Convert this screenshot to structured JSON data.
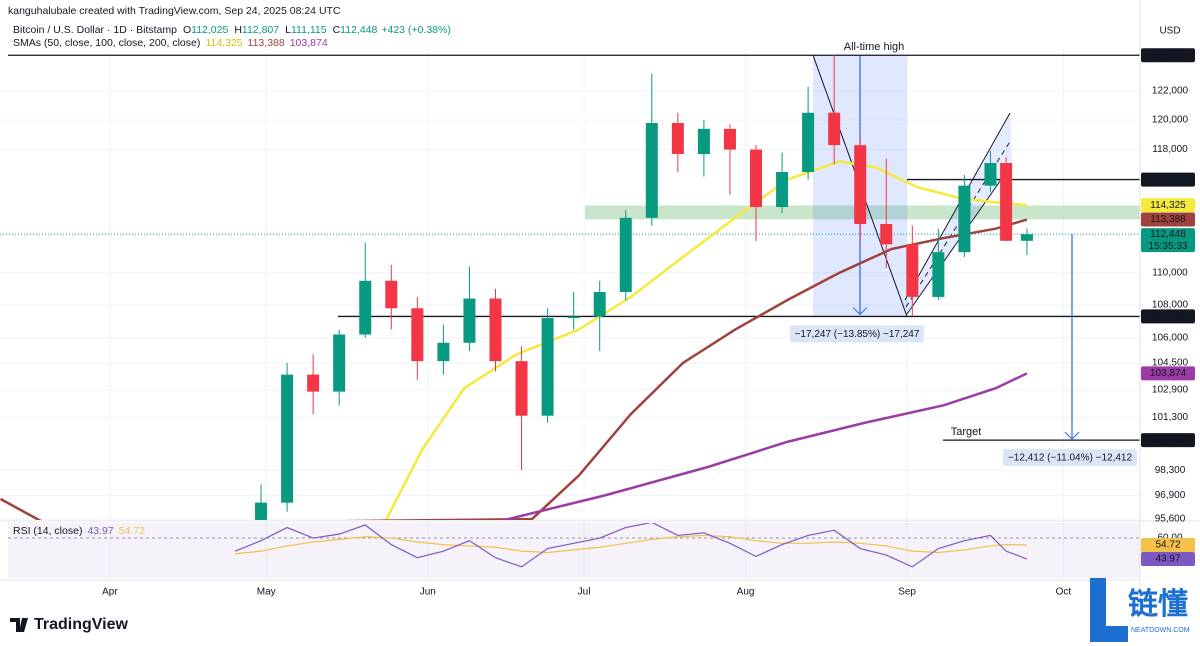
{
  "header": {
    "credit": "kanguhalubale created with TradingView.com, Sep 24, 2025 08:24 UTC",
    "currency": "USD",
    "brand": "TradingView",
    "watermark": "链懂",
    "watermark_sub": "NEATDOWN.COM"
  },
  "chart_data": {
    "type": "candlestick",
    "symbol": "Bitcoin / U.S. Dollar · 1D · Bitstamp",
    "ohlc_legend": [
      {
        "key": "O",
        "value": "112,025"
      },
      {
        "key": "H",
        "value": "112,807"
      },
      {
        "key": "L",
        "value": "111,115"
      },
      {
        "key": "C",
        "value": "112,448"
      }
    ],
    "change": "+423 (+0.38%)",
    "log_scale": true,
    "grid": true,
    "xlim": [
      -21.1,
      197.7
    ],
    "xticks": [
      {
        "value": 0,
        "label": "Apr"
      },
      {
        "value": 30,
        "label": "May"
      },
      {
        "value": 61,
        "label": "Jun"
      },
      {
        "value": 91,
        "label": "Jul"
      },
      {
        "value": 122,
        "label": "Aug"
      },
      {
        "value": 153,
        "label": "Sep"
      },
      {
        "value": 183,
        "label": "Oct"
      }
    ],
    "ylim": [
      95550,
      125030
    ],
    "yticks": [
      {
        "value": 122000,
        "label": "122,000"
      },
      {
        "value": 120000,
        "label": "120,000"
      },
      {
        "value": 118000,
        "label": "118,000"
      },
      {
        "value": 110000,
        "label": "110,000"
      },
      {
        "value": 108000,
        "label": "108,000"
      },
      {
        "value": 106000,
        "label": "106,000"
      },
      {
        "value": 104500,
        "label": "104,500"
      },
      {
        "value": 102900,
        "label": "102,900"
      },
      {
        "value": 101300,
        "label": "101,300"
      },
      {
        "value": 98300,
        "label": "98,300"
      },
      {
        "value": 96900,
        "label": "96,900"
      },
      {
        "value": 95600,
        "label": "95,600"
      }
    ],
    "up_color": "#089981",
    "down_color": "#f23645",
    "x": [
      24,
      29,
      34,
      39,
      44,
      49,
      54,
      59,
      64,
      69,
      74,
      79,
      84,
      89,
      94,
      99,
      104,
      109,
      114,
      119,
      124,
      129,
      134,
      139,
      144,
      149,
      154,
      159,
      164,
      169,
      172,
      176
    ],
    "open": [
      93500,
      94800,
      96500,
      103800,
      102800,
      106200,
      109500,
      107800,
      104600,
      105700,
      108400,
      104600,
      101400,
      107200,
      107300,
      108800,
      113500,
      119800,
      117700,
      119400,
      118000,
      114200,
      116500,
      120500,
      118300,
      113100,
      111800,
      108500,
      111300,
      115600,
      117100,
      112025
    ],
    "high": [
      95500,
      97500,
      104500,
      105000,
      106500,
      111900,
      110500,
      108500,
      106800,
      110400,
      109000,
      105500,
      107800,
      108800,
      109500,
      114000,
      123200,
      120500,
      120000,
      119700,
      118300,
      117800,
      122300,
      124517,
      118800,
      117400,
      113000,
      112800,
      116300,
      117900,
      117500,
      112807
    ],
    "low": [
      92800,
      94000,
      96000,
      101500,
      102000,
      106000,
      106500,
      103500,
      103800,
      105200,
      104000,
      98300,
      101000,
      106500,
      105200,
      108300,
      113000,
      116500,
      116200,
      115000,
      112000,
      113800,
      116000,
      117000,
      112000,
      110300,
      107300,
      108300,
      111000,
      115200,
      112000,
      111115
    ],
    "close": [
      94800,
      96500,
      103800,
      102800,
      106200,
      109500,
      107800,
      104600,
      105700,
      108400,
      104600,
      101400,
      107200,
      107300,
      108800,
      113500,
      119800,
      117700,
      119400,
      118000,
      114200,
      116500,
      120500,
      118300,
      113100,
      111800,
      108500,
      111300,
      115600,
      117100,
      112025,
      112448
    ],
    "sma": {
      "title": "SMAs (50, close, 100, close, 200, close)",
      "lines": [
        {
          "color": "#f5e93c",
          "text_color": "#131722",
          "last_label": "114,325",
          "x": [
            52,
            60,
            68,
            78,
            90,
            100,
            110,
            120,
            130,
            140,
            147,
            155,
            163,
            170,
            176
          ],
          "values": [
            95000,
            99500,
            103000,
            105000,
            106500,
            108500,
            111000,
            113500,
            116000,
            117200,
            116800,
            115500,
            114800,
            114500,
            114325
          ]
        },
        {
          "color": "#a0423c",
          "text_color": "#ffffff",
          "last_label": "113,388",
          "x": [
            -21,
            -12,
            81,
            90,
            100,
            110,
            120,
            130,
            140,
            150,
            160,
            170,
            176
          ],
          "values": [
            96700,
            95300,
            95600,
            98000,
            101500,
            104500,
            106500,
            108300,
            110000,
            111500,
            112200,
            112800,
            113388
          ]
        },
        {
          "color": "#9c3ba5",
          "text_color": "#ffffff",
          "last_label": "103,874",
          "x": [
            60,
            75,
            95,
            115,
            130,
            145,
            160,
            170,
            176
          ],
          "values": [
            94500,
            95500,
            96900,
            98500,
            99900,
            101000,
            102000,
            103000,
            103874
          ]
        }
      ]
    },
    "levels": [
      {
        "value": 124517,
        "label": "124,517"
      },
      {
        "value": 116000,
        "label": "116,000"
      },
      {
        "value": 107300,
        "label": "107,300"
      },
      {
        "value": 100000,
        "label": "100,000"
      }
    ],
    "last_price": {
      "value": 112448,
      "label": "112,448",
      "countdown": "15:35:33",
      "color": "#089981"
    },
    "zone": {
      "low": 113400,
      "high": 114300,
      "color": "#a5d6a7"
    },
    "annotations": {
      "ath": "All-time high",
      "ath_measure": "−17,247 (−13.85%) −17,247",
      "target": "Target",
      "target_measure": "−12,412 (−11.04%) −12,412"
    },
    "rsi": {
      "title": "RSI (14, close)",
      "value": 43.97,
      "ma_value": 54.72,
      "color": "#7e57c2",
      "ma_color": "#f5c04a",
      "ylim": [
        29.5,
        71.5
      ],
      "yticks": [
        {
          "value": 60,
          "label": "60.00"
        }
      ],
      "values": [
        50,
        58,
        68,
        60,
        63,
        70,
        55,
        45,
        50,
        58,
        45,
        38,
        52,
        56,
        60,
        68,
        72,
        62,
        64,
        56,
        46,
        55,
        62,
        66,
        52,
        47,
        38,
        52,
        58,
        62,
        50,
        43.97
      ],
      "ma": [
        48,
        50,
        54,
        57,
        59,
        61,
        60,
        57,
        55,
        54,
        53,
        50,
        49,
        51,
        53,
        56,
        59,
        61,
        62,
        61,
        58,
        56,
        56,
        57,
        56,
        54,
        50,
        49,
        51,
        54,
        55,
        54.72
      ]
    }
  }
}
